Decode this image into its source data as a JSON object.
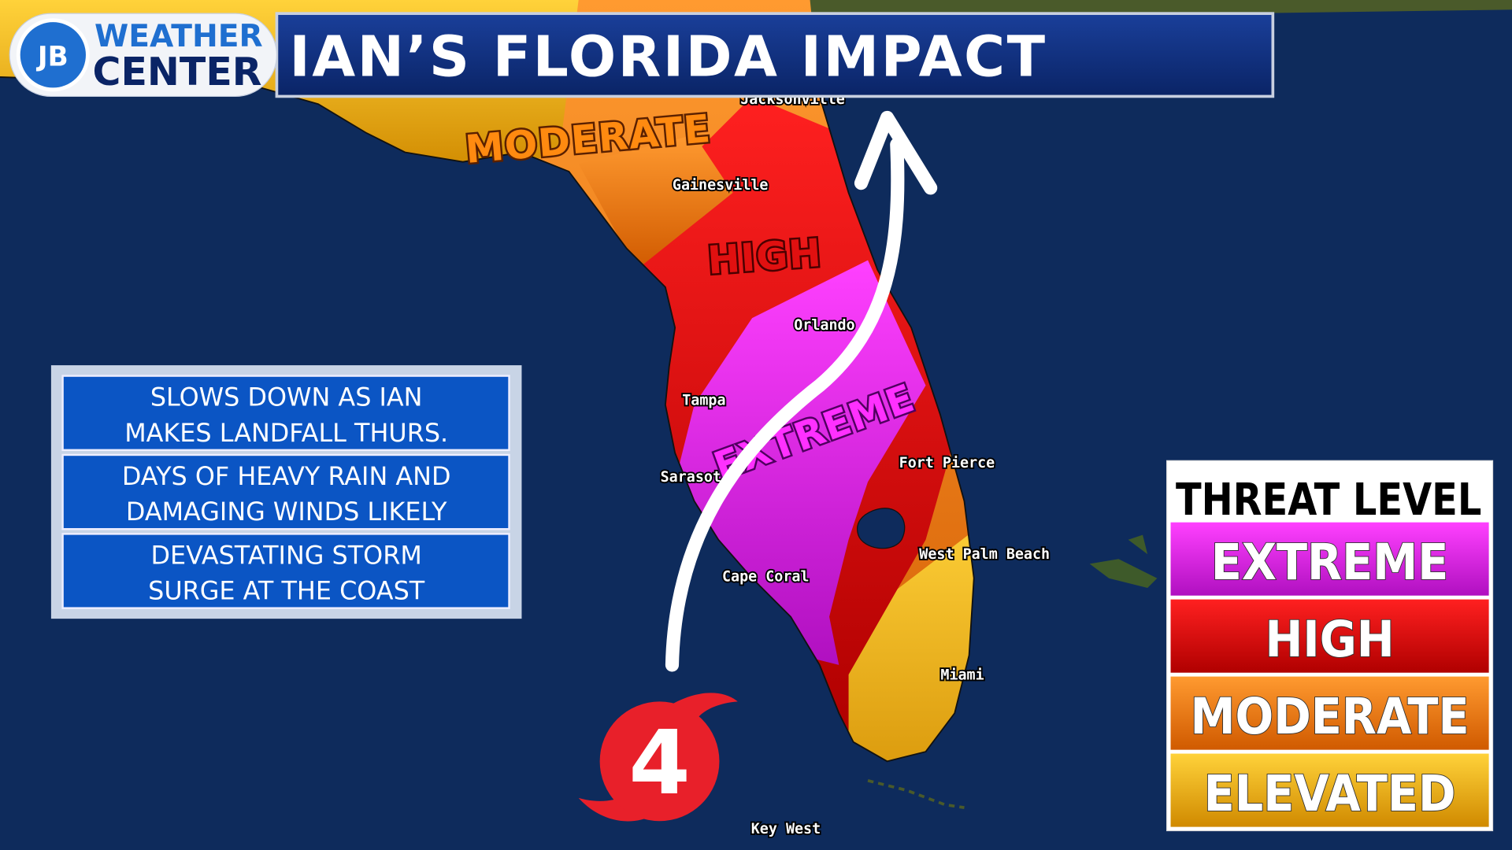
{
  "logo": {
    "badge": "JB",
    "line1": "WEATHER",
    "line2": "CENTER"
  },
  "header": {
    "title": "IAN’S FLORIDA IMPACT"
  },
  "info_boxes": [
    {
      "lines": [
        "SLOWS DOWN AS IAN",
        "MAKES LANDFALL THURS."
      ]
    },
    {
      "lines": [
        "DAYS OF HEAVY RAIN AND",
        "DAMAGING WINDS LIKELY"
      ]
    },
    {
      "lines": [
        "DEVASTATING STORM",
        "SURGE AT THE COAST"
      ]
    }
  ],
  "zones": [
    "MODERATE",
    "HIGH",
    "EXTREME"
  ],
  "cities": [
    "Jacksonville",
    "Gainesville",
    "Orlando",
    "Tampa",
    "Sarasota",
    "Fort Pierce",
    "West Palm Beach",
    "Cape Coral",
    "Miami",
    "Key West"
  ],
  "hurricane": {
    "category": "4"
  },
  "legend": {
    "title": "THREAT LEVEL",
    "items": [
      "EXTREME",
      "HIGH",
      "MODERATE",
      "ELEVATED"
    ]
  }
}
